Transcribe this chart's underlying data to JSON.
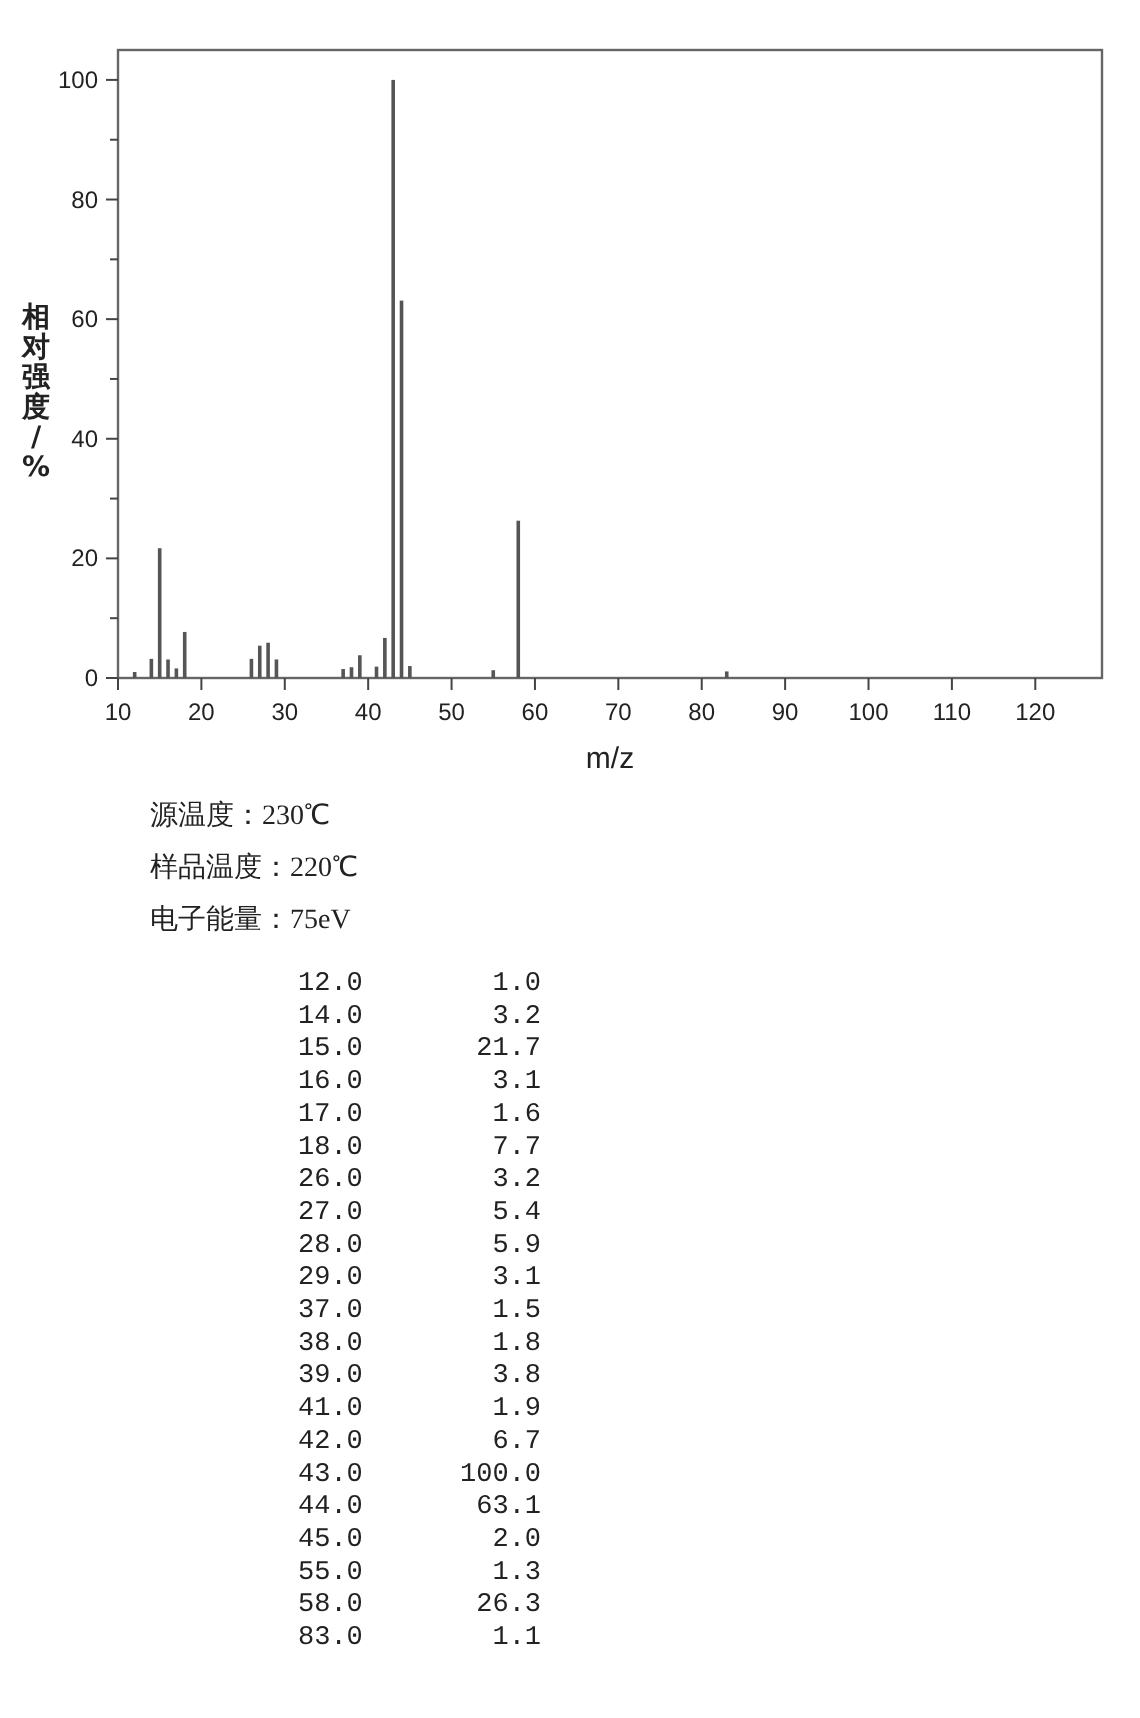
{
  "chart_data": {
    "type": "bar",
    "xlabel": "m/z",
    "ylabel": "相对强度/%",
    "x": [
      12.0,
      14.0,
      15.0,
      16.0,
      17.0,
      18.0,
      26.0,
      27.0,
      28.0,
      29.0,
      37.0,
      38.0,
      39.0,
      41.0,
      42.0,
      43.0,
      44.0,
      45.0,
      55.0,
      58.0,
      83.0
    ],
    "values": [
      1.0,
      3.2,
      21.7,
      3.1,
      1.6,
      7.7,
      3.2,
      5.4,
      5.9,
      3.1,
      1.5,
      1.8,
      3.8,
      1.9,
      6.7,
      100.0,
      63.1,
      2.0,
      1.3,
      26.3,
      1.1
    ],
    "color": "#555555",
    "xlim": [
      10,
      128
    ],
    "xticks": [
      10,
      20,
      30,
      40,
      50,
      60,
      70,
      80,
      90,
      100,
      110,
      120
    ],
    "ylim": [
      0,
      105
    ],
    "yticks": [
      0,
      {
        "value": 10,
        "label": null
      },
      20,
      {
        "value": 30,
        "label": null
      },
      40,
      {
        "value": 50,
        "label": null
      },
      60,
      {
        "value": 70,
        "label": null
      },
      80,
      {
        "value": 90,
        "label": null
      },
      100
    ],
    "grid": false,
    "annotations": [
      "源温度：230℃",
      "样品温度：220℃",
      "电子能量：75eV",
      "12.0        1.0",
      "14.0        3.2",
      "15.0       21.7",
      "16.0        3.1",
      "17.0        1.6",
      "18.0        7.7",
      "26.0        3.2",
      "27.0        5.4",
      "28.0        5.9",
      "29.0        3.1",
      "37.0        1.5",
      "38.0        1.8",
      "39.0        3.8",
      "41.0        1.9",
      "42.0        6.7",
      "43.0      100.0",
      "44.0       63.1",
      "45.0        2.0",
      "55.0        1.3",
      "58.0       26.3",
      "83.0        1.1"
    ]
  }
}
